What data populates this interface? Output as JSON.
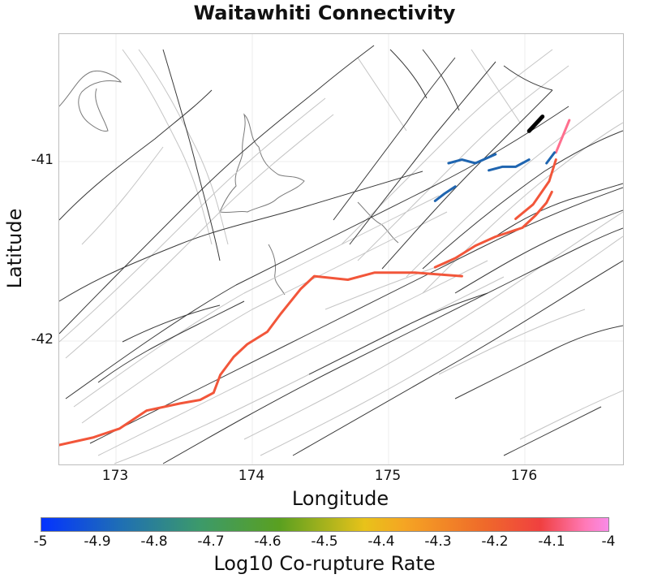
{
  "title": "Waitawhiti Connectivity",
  "map": {
    "xlabel": "Longitude",
    "ylabel": "Latitude",
    "x_ticks": [
      "173",
      "174",
      "175",
      "176"
    ],
    "y_ticks": [
      "-41",
      "-42"
    ],
    "xlim": [
      172.55,
      176.75
    ],
    "ylim": [
      -42.7,
      -40.3
    ]
  },
  "colorbar": {
    "label": "Log10 Co-rupture Rate",
    "ticks": [
      "-5",
      "-4.9",
      "-4.8",
      "-4.7",
      "-4.6",
      "-4.5",
      "-4.4",
      "-4.3",
      "-4.2",
      "-4.1",
      "-4"
    ],
    "range": [
      -5,
      -4
    ],
    "colors": [
      "#0433ff",
      "#1f6fb4",
      "#3c9a6a",
      "#5aa020",
      "#e8c21a",
      "#f5a523",
      "#ef6a2a",
      "#f04040",
      "#ff7ab8",
      "#f98be8"
    ]
  },
  "highlighted_ruptures": [
    {
      "name": "waitawhiti-fault",
      "color": "#000000",
      "coords": [
        [
          176.05,
          -40.84
        ],
        [
          176.15,
          -40.76
        ]
      ]
    },
    {
      "name": "rupture-pink",
      "color": "#ff6f8e",
      "coords": [
        [
          176.25,
          -40.96
        ],
        [
          176.35,
          -40.78
        ]
      ]
    },
    {
      "name": "rupture-blue-1",
      "color": "#1f65b0",
      "coords": [
        [
          175.45,
          -41.02
        ],
        [
          175.55,
          -41.0
        ],
        [
          175.65,
          -41.02
        ],
        [
          175.8,
          -40.97
        ]
      ]
    },
    {
      "name": "rupture-blue-2",
      "color": "#1f65b0",
      "coords": [
        [
          175.75,
          -41.06
        ],
        [
          175.85,
          -41.04
        ],
        [
          175.95,
          -41.04
        ],
        [
          176.05,
          -41.0
        ]
      ]
    },
    {
      "name": "rupture-blue-3",
      "color": "#1f65b0",
      "coords": [
        [
          175.35,
          -41.23
        ],
        [
          175.42,
          -41.19
        ],
        [
          175.5,
          -41.15
        ]
      ]
    },
    {
      "name": "rupture-blue-4",
      "color": "#1f65b0",
      "coords": [
        [
          176.18,
          -41.02
        ],
        [
          176.24,
          -40.96
        ]
      ]
    },
    {
      "name": "rupture-orange-main",
      "color": "#f2563a",
      "coords": [
        [
          172.5,
          -42.6
        ],
        [
          172.8,
          -42.55
        ],
        [
          173.0,
          -42.5
        ],
        [
          173.2,
          -42.4
        ],
        [
          173.45,
          -42.36
        ],
        [
          173.6,
          -42.34
        ],
        [
          173.7,
          -42.3
        ],
        [
          173.75,
          -42.2
        ],
        [
          173.85,
          -42.1
        ],
        [
          173.95,
          -42.03
        ],
        [
          174.1,
          -41.96
        ],
        [
          174.2,
          -41.86
        ],
        [
          174.35,
          -41.72
        ],
        [
          174.45,
          -41.65
        ],
        [
          174.7,
          -41.67
        ],
        [
          174.9,
          -41.63
        ],
        [
          175.2,
          -41.63
        ],
        [
          175.55,
          -41.65
        ]
      ]
    },
    {
      "name": "rupture-orange-2",
      "color": "#f2563a",
      "coords": [
        [
          175.35,
          -41.6
        ],
        [
          175.5,
          -41.55
        ],
        [
          175.65,
          -41.48
        ],
        [
          175.8,
          -41.43
        ],
        [
          176.0,
          -41.38
        ],
        [
          176.1,
          -41.31
        ],
        [
          176.18,
          -41.24
        ],
        [
          176.22,
          -41.18
        ]
      ]
    },
    {
      "name": "rupture-orange-3",
      "color": "#f2563a",
      "coords": [
        [
          175.95,
          -41.33
        ],
        [
          176.08,
          -41.25
        ],
        [
          176.2,
          -41.12
        ],
        [
          176.25,
          -41.0
        ]
      ]
    }
  ]
}
